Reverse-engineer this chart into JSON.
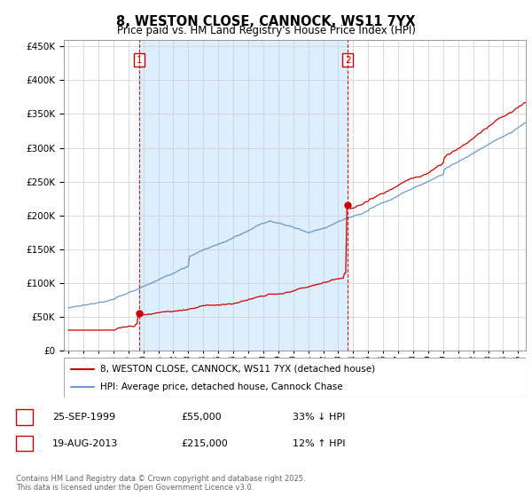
{
  "title": "8, WESTON CLOSE, CANNOCK, WS11 7YX",
  "subtitle": "Price paid vs. HM Land Registry's House Price Index (HPI)",
  "legend_line1": "8, WESTON CLOSE, CANNOCK, WS11 7YX (detached house)",
  "legend_line2": "HPI: Average price, detached house, Cannock Chase",
  "sale1_date": "25-SEP-1999",
  "sale1_price": "£55,000",
  "sale1_hpi": "33% ↓ HPI",
  "sale1_year": 1999.73,
  "sale1_value": 55000,
  "sale2_date": "19-AUG-2013",
  "sale2_price": "£215,000",
  "sale2_hpi": "12% ↑ HPI",
  "sale2_year": 2013.63,
  "sale2_value": 215000,
  "red_color": "#cc0000",
  "blue_color": "#5588bb",
  "shade_color": "#ddeeff",
  "vline_color": "#cc0000",
  "footer_text": "Contains HM Land Registry data © Crown copyright and database right 2025.\nThis data is licensed under the Open Government Licence v3.0.",
  "ylim": [
    0,
    460000
  ],
  "yticks": [
    0,
    50000,
    100000,
    150000,
    200000,
    250000,
    300000,
    350000,
    400000,
    450000
  ],
  "xlim_start": 1994.7,
  "xlim_end": 2025.5
}
